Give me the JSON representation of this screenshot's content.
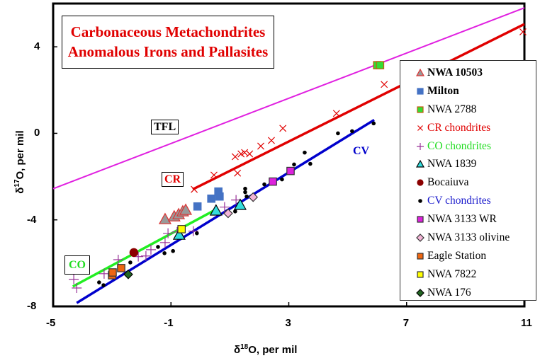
{
  "chart_data": {
    "type": "scatter",
    "title": [
      "Carbonaceous Metachondrites",
      "Anomalous Irons and Pallasites"
    ],
    "xlabel": {
      "pre": "δ",
      "sup": "18",
      "post": "O, per mil"
    },
    "ylabel": {
      "pre": "δ",
      "sup": "17",
      "post": "O, per mil"
    },
    "xlim": [
      -5,
      11
    ],
    "ylim": [
      -8,
      6
    ],
    "xticks": [
      -5,
      -1,
      3,
      7,
      11
    ],
    "yticks": [
      -8,
      -4,
      0,
      4
    ],
    "grid": false,
    "legend_position": "right",
    "lines": [
      {
        "label": "TFL",
        "color": "#e020e0",
        "points": [
          [
            -5,
            -2.56
          ],
          [
            11,
            5.8
          ]
        ]
      },
      {
        "label": "CR",
        "color": "#e00000",
        "points": [
          [
            -0.26,
            -2.59
          ],
          [
            11,
            5.05
          ]
        ]
      },
      {
        "label": "CV",
        "color": "#0000cc",
        "points": [
          [
            -4.2,
            -7.84
          ],
          [
            5.9,
            0.62
          ]
        ]
      },
      {
        "label": "CO",
        "color": "#22ee22",
        "points": [
          [
            -4.33,
            -7.08
          ],
          [
            0.46,
            -3.57
          ]
        ]
      }
    ],
    "series": [
      {
        "name": "NWA 10503",
        "bold": true,
        "marker": "triangle",
        "fill": "#999999",
        "stroke": "#dd3333",
        "text_color": "#000",
        "points": [
          [
            -1.2,
            -3.97
          ],
          [
            -0.89,
            -3.84
          ],
          [
            -0.74,
            -3.74
          ],
          [
            -0.6,
            -3.61
          ],
          [
            -0.5,
            -3.54
          ]
        ]
      },
      {
        "name": "Milton",
        "bold": true,
        "marker": "square",
        "fill": "#4472c4",
        "stroke": "#4472c4",
        "text_color": "#000",
        "points": [
          [
            -0.1,
            -3.38
          ],
          [
            0.37,
            -3.02
          ],
          [
            0.61,
            -2.69
          ],
          [
            0.65,
            -2.92
          ]
        ]
      },
      {
        "name": "NWA 2788",
        "marker": "square",
        "fill": "#33dd33",
        "stroke": "#c55a11",
        "text_color": "#000",
        "points": [
          [
            6.0,
            3.15
          ],
          [
            6.1,
            3.15
          ]
        ]
      },
      {
        "name": "CR chondrites",
        "marker": "x",
        "fill": "none",
        "stroke": "#e00000",
        "text_color": "#e00000",
        "points": [
          [
            -0.21,
            -2.59
          ],
          [
            0.46,
            -1.93
          ],
          [
            1.26,
            -1.84
          ],
          [
            1.18,
            -1.08
          ],
          [
            1.38,
            -0.95
          ],
          [
            1.5,
            -0.89
          ],
          [
            1.67,
            -0.95
          ],
          [
            2.05,
            -0.59
          ],
          [
            2.41,
            -0.33
          ],
          [
            2.8,
            0.23
          ],
          [
            4.62,
            0.92
          ],
          [
            6.24,
            2.26
          ],
          [
            10.95,
            4.69
          ]
        ]
      },
      {
        "name": "CO chondrites",
        "marker": "plus",
        "fill": "none",
        "stroke": "#993399",
        "text_color": "#22dd22",
        "points": [
          [
            -4.3,
            -6.75
          ],
          [
            -4.2,
            -7.15
          ],
          [
            -3.27,
            -6.49
          ],
          [
            -2.79,
            -5.84
          ],
          [
            -2.11,
            -5.7
          ],
          [
            -1.85,
            -5.67
          ],
          [
            -1.68,
            -5.38
          ],
          [
            -1.2,
            -5.05
          ],
          [
            -1.1,
            -4.62
          ],
          [
            -0.79,
            -4.56
          ],
          [
            -0.24,
            -4.52
          ],
          [
            0.82,
            -3.41
          ],
          [
            1.21,
            -3.08
          ]
        ]
      },
      {
        "name": "NWA 1839",
        "marker": "triangle",
        "fill": "#33dddd",
        "stroke": "#000",
        "text_color": "#000",
        "points": [
          [
            0.53,
            -3.57
          ],
          [
            1.35,
            -3.31
          ],
          [
            -0.72,
            -4.69
          ]
        ]
      },
      {
        "name": "Bocaiuva",
        "marker": "circle",
        "fill": "#8b0000",
        "stroke": "#8b0000",
        "text_color": "#000",
        "points": [
          [
            -2.26,
            -5.51
          ]
        ]
      },
      {
        "name": "CV chondrites",
        "marker": "dot",
        "fill": "#000",
        "stroke": "#000",
        "text_color": "#1a1acc",
        "points": [
          [
            -3.44,
            -6.89
          ],
          [
            -3.29,
            -7.02
          ],
          [
            -2.38,
            -5.97
          ],
          [
            -1.44,
            -5.25
          ],
          [
            -1.22,
            -5.54
          ],
          [
            -0.93,
            -5.44
          ],
          [
            -0.12,
            -4.62
          ],
          [
            1.18,
            -3.61
          ],
          [
            1.52,
            -2.56
          ],
          [
            1.52,
            -2.72
          ],
          [
            1.57,
            -2.92
          ],
          [
            2.17,
            -2.36
          ],
          [
            2.77,
            -2.13
          ],
          [
            3.18,
            -1.44
          ],
          [
            3.54,
            -0.89
          ],
          [
            3.73,
            -1.41
          ],
          [
            4.67,
            0
          ],
          [
            5.15,
            0.1
          ],
          [
            5.88,
            0.46
          ]
        ]
      },
      {
        "name": "NWA 3133 WR",
        "marker": "square",
        "fill": "#dd22dd",
        "stroke": "#333",
        "text_color": "#000",
        "points": [
          [
            2.46,
            -2.23
          ],
          [
            3.06,
            -1.74
          ]
        ]
      },
      {
        "name": "NWA 3133 olivine",
        "marker": "diamond",
        "fill": "#f4b6d8",
        "stroke": "#333",
        "text_color": "#000",
        "points": [
          [
            0.94,
            -3.7
          ],
          [
            1.79,
            -2.95
          ]
        ]
      },
      {
        "name": "Eagle Station",
        "marker": "square",
        "fill": "#ee6611",
        "stroke": "#333",
        "text_color": "#000",
        "points": [
          [
            -3.0,
            -6.56
          ],
          [
            -2.69,
            -6.23
          ],
          [
            -2.98,
            -6.43
          ]
        ]
      },
      {
        "name": "NWA 7822",
        "marker": "square",
        "fill": "#ffff00",
        "stroke": "#333",
        "text_color": "#000",
        "points": [
          [
            -0.64,
            -4.43
          ]
        ]
      },
      {
        "name": "NWA 176",
        "marker": "diamond",
        "fill": "#226622",
        "stroke": "#000",
        "text_color": "#000",
        "points": [
          [
            -2.45,
            -6.52
          ]
        ]
      }
    ]
  }
}
